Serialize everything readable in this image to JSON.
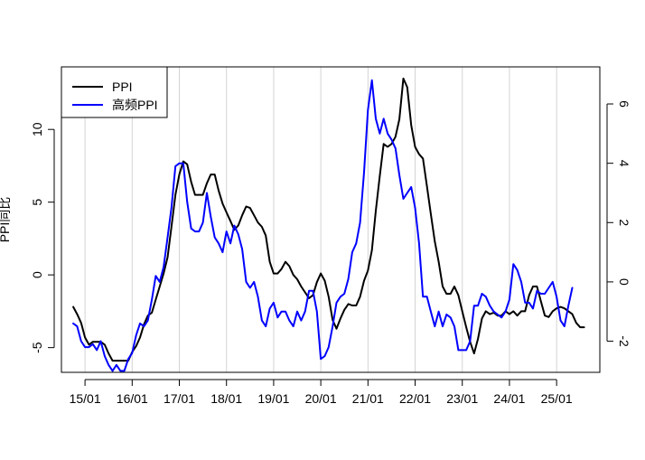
{
  "chart_data": {
    "type": "line",
    "title": "",
    "xlabel": "",
    "ylabel_left": "PPI同比",
    "ylabel_right": "",
    "x_ticks": [
      "15/01",
      "16/01",
      "17/01",
      "18/01",
      "19/01",
      "20/01",
      "21/01",
      "22/01",
      "23/01",
      "24/01",
      "25/01"
    ],
    "y_left_ticks": [
      "-5",
      "0",
      "5",
      "10"
    ],
    "y_left_range": [
      -6.7,
      14.3
    ],
    "y_right_ticks": [
      "-2",
      "0",
      "2",
      "4",
      "6"
    ],
    "y_right_range": [
      -3.05,
      7.25
    ],
    "x_range": [
      "2014-07",
      "2025-12"
    ],
    "grid": "vertical lines at each x tick",
    "legend_position": "top-left",
    "series": [
      {
        "name": "PPI",
        "axis": "left",
        "color": "#000000",
        "x_start": "2014-10",
        "values": [
          -2.2,
          -2.7,
          -3.3,
          -4.3,
          -4.8,
          -4.6,
          -4.6,
          -4.6,
          -4.8,
          -5.4,
          -5.9,
          -5.9,
          -5.9,
          -5.9,
          -5.9,
          -5.3,
          -4.9,
          -4.3,
          -3.4,
          -2.8,
          -2.6,
          -1.7,
          -0.8,
          0.1,
          1.2,
          3.3,
          5.5,
          6.9,
          7.8,
          7.6,
          6.4,
          5.5,
          5.5,
          5.5,
          6.3,
          6.9,
          6.9,
          5.8,
          4.9,
          4.3,
          3.7,
          3.1,
          3.4,
          4.1,
          4.7,
          4.6,
          4.1,
          3.6,
          3.3,
          2.7,
          0.9,
          0.1,
          0.1,
          0.4,
          0.9,
          0.6,
          0.0,
          -0.3,
          -0.8,
          -1.2,
          -1.6,
          -1.4,
          -0.5,
          0.1,
          -0.4,
          -1.5,
          -3.1,
          -3.7,
          -3.0,
          -2.4,
          -2.0,
          -2.1,
          -2.1,
          -1.5,
          -0.4,
          0.3,
          1.7,
          4.4,
          6.8,
          9.0,
          8.8,
          9.0,
          9.5,
          10.7,
          13.5,
          12.9,
          10.3,
          8.8,
          8.3,
          8.0,
          6.1,
          4.2,
          2.3,
          0.9,
          -0.8,
          -1.3,
          -1.3,
          -0.8,
          -1.4,
          -2.5,
          -3.6,
          -4.6,
          -5.4,
          -4.4,
          -3.0,
          -2.5,
          -2.7,
          -2.6,
          -2.8,
          -2.8,
          -2.5,
          -2.7,
          -2.5,
          -2.8,
          -2.5,
          -2.5,
          -1.4,
          -0.8,
          -0.8,
          -1.8,
          -2.8,
          -2.9,
          -2.5,
          -2.3,
          -2.2,
          -2.3,
          -2.5,
          -2.7,
          -3.3,
          -3.6,
          -3.6
        ]
      },
      {
        "name": "高频PPI",
        "axis": "right",
        "color": "#0000ff",
        "x_start": "2014-10",
        "values": [
          -1.4,
          -1.5,
          -2.0,
          -2.2,
          -2.2,
          -2.1,
          -2.3,
          -2.0,
          -2.5,
          -2.8,
          -3.0,
          -2.8,
          -3.0,
          -3.0,
          -2.6,
          -2.4,
          -1.8,
          -1.4,
          -1.5,
          -1.3,
          -0.6,
          0.2,
          0.0,
          0.5,
          1.5,
          2.5,
          3.9,
          4.0,
          4.0,
          2.7,
          1.8,
          1.7,
          1.7,
          2.0,
          3.0,
          2.2,
          1.5,
          1.3,
          1.0,
          1.7,
          1.3,
          1.9,
          1.6,
          1.1,
          0.0,
          -0.2,
          0.0,
          -0.5,
          -1.3,
          -1.5,
          -0.9,
          -0.7,
          -1.2,
          -1.0,
          -1.0,
          -1.3,
          -1.5,
          -1.0,
          -1.3,
          -1.0,
          -0.3,
          -0.3,
          -1.0,
          -2.6,
          -2.5,
          -2.2,
          -1.5,
          -0.7,
          -0.5,
          -0.4,
          0.1,
          1.0,
          1.3,
          2.0,
          3.7,
          5.8,
          6.8,
          5.5,
          5.0,
          5.5,
          5.0,
          4.8,
          4.5,
          3.6,
          2.8,
          3.0,
          3.2,
          2.5,
          1.3,
          -0.5,
          -0.5,
          -1.0,
          -1.5,
          -1.0,
          -1.5,
          -1.1,
          -1.2,
          -1.5,
          -2.3,
          -2.3,
          -2.3,
          -2.0,
          -0.8,
          -0.8,
          -0.4,
          -0.5,
          -0.8,
          -1.0,
          -1.1,
          -1.2,
          -1.0,
          -0.6,
          0.6,
          0.4,
          0.0,
          -0.7,
          -0.7,
          -0.9,
          -0.3,
          -0.4,
          -0.4,
          -0.2,
          0.0,
          -0.5,
          -1.3,
          -1.5,
          -0.8,
          -0.2
        ]
      }
    ]
  }
}
